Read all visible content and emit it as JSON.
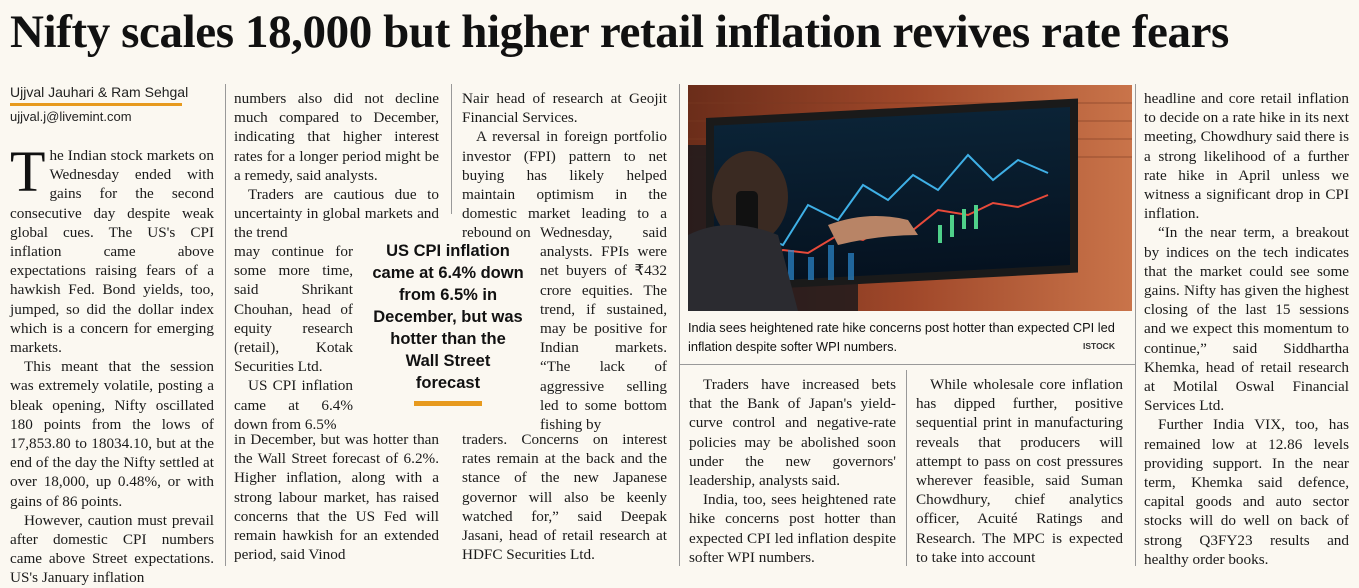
{
  "headline": "Nifty scales 18,000 but higher retail inflation revives rate fears",
  "byline": {
    "authors": "Ujjval Jauhari & Ram Sehgal",
    "email": "ujjval.j@livemint.com"
  },
  "columns": {
    "c1": {
      "dropcap": "T",
      "p1": "he Indian stock markets on Wednesday ended with gains for the second consecutive day despite weak global cues. The US's CPI inflation came above expectations raising fears of a hawkish Fed. Bond yields, too, jumped, so did the dollar index which is a concern for emerging markets.",
      "p2": "This meant that the session was extremely volatile, posting a bleak opening, Nifty oscillated 180 points from the lows of 17,853.80 to 18034.10, but at the end of the day the Nifty settled at over 18,000, up 0.48%, or with gains of 86 points.",
      "p3": "However, caution must prevail after domestic CPI numbers came above Street expectations. US's January inflation"
    },
    "c2": {
      "p1": "numbers also did not decline much compared to December, indicating that higher interest rates for a longer period might be a remedy, said analysts.",
      "p2a": "Traders are cautious due to uncertainty in global markets and the trend",
      "p2b": "may continue for some more time, said Shrikant Chouhan, head of equity research (retail), Kotak Securities Ltd.",
      "p3a": "US CPI inflation came at 6.4% down from 6.5%",
      "p3b": "in December, but was hotter than the Wall Street forecast of 6.2%. Higher inflation, along with a strong labour market, has raised concerns that the US Fed will remain hawkish for an extended period, said Vinod"
    },
    "c3": {
      "p1": "Nair head of research at Geojit Financial Services.",
      "p2a": "A reversal in foreign portfolio investor (FPI) pattern to net buying has likely helped maintain optimism in the domestic market leading to a rebound on",
      "p2b": "Wednesday, said analysts. FPIs were net buyers of ₹432 crore equities. The trend, if sustained, may be positive for Indian markets. “The lack of aggressive selling led to some bottom fishing by",
      "p2c": "traders. Concerns on interest rates remain at the back and the stance of the new Japanese governor will also be keenly watched for,” said Deepak Jasani, head of retail research at HDFC Securities Ltd."
    },
    "c4": {
      "p1": "Traders have increased bets that the Bank of Japan's yield-curve control and negative-rate policies may be abolished soon under the new governors' leadership, analysts said.",
      "p2": "India, too, sees heightened rate hike concerns post hotter than expected CPI led inflation despite softer WPI numbers."
    },
    "c5": {
      "p1": "While wholesale core inflation has dipped further, positive sequential print in manufacturing reveals that producers will attempt to pass on cost pressures wherever feasible, said Suman Chowdhury, chief analytics officer, Acuité Ratings and Research. The MPC is expected to take into account"
    },
    "c6": {
      "p1": "headline and core retail inflation to decide on a rate hike in its next meeting, Chowdhury said there is a strong likelihood of a further rate hike in April unless we witness a significant drop in CPI inflation.",
      "p2": "“In the near term, a breakout by indices on the tech indicates that the market could see some gains. Nifty has given the highest closing of the last 15 sessions and we expect this momentum to continue,” said Siddhartha Khemka, head of retail research at Motilal Oswal Financial Services Ltd.",
      "p3": "Further India VIX, too, has remained low at 12.86 levels providing support. In the near term, Khemka said defence, capital goods and auto sector stocks will do well on back of strong Q3FY23 results and healthy order books."
    }
  },
  "pullquote": "US CPI inflation came at 6.4% down from 6.5% in December, but was hotter than the Wall Street forecast",
  "photo": {
    "caption": "India sees heightened rate hike concerns post hotter than expected CPI led inflation despite softer WPI numbers.",
    "credit": "ISTOCK"
  },
  "colors": {
    "accent": "#e79a1e",
    "paper": "#fbf8f1",
    "text": "#1a1a1a"
  }
}
